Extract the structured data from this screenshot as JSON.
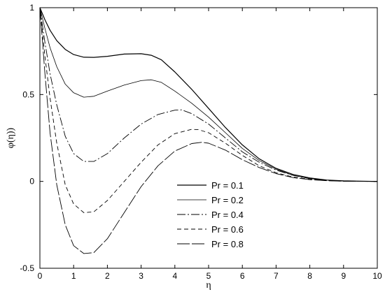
{
  "chart_data": {
    "type": "line",
    "title": "",
    "xlabel": "η",
    "ylabel": "φ(η))",
    "xlim": [
      0,
      10
    ],
    "ylim": [
      -0.5,
      1
    ],
    "xticks": [
      0,
      1,
      2,
      3,
      4,
      5,
      6,
      7,
      8,
      9,
      10
    ],
    "yticks": [
      -0.5,
      0,
      0.5,
      1
    ],
    "ytick_labels": [
      "-0.5",
      "0",
      "0.5",
      "1"
    ],
    "grid": false,
    "legend_position": "center-bottom",
    "series": [
      {
        "name": "Pr = 0.1",
        "dash": "solid",
        "points": [
          [
            0,
            1.0
          ],
          [
            0.15,
            0.93
          ],
          [
            0.3,
            0.87
          ],
          [
            0.5,
            0.81
          ],
          [
            0.75,
            0.76
          ],
          [
            1.0,
            0.73
          ],
          [
            1.3,
            0.715
          ],
          [
            1.6,
            0.714
          ],
          [
            2.0,
            0.72
          ],
          [
            2.5,
            0.733
          ],
          [
            3.0,
            0.735
          ],
          [
            3.3,
            0.726
          ],
          [
            3.6,
            0.7
          ],
          [
            4.0,
            0.63
          ],
          [
            4.5,
            0.53
          ],
          [
            5.0,
            0.42
          ],
          [
            5.5,
            0.31
          ],
          [
            6.0,
            0.21
          ],
          [
            6.5,
            0.13
          ],
          [
            7.0,
            0.075
          ],
          [
            7.5,
            0.04
          ],
          [
            8.0,
            0.02
          ],
          [
            8.5,
            0.008
          ],
          [
            9.0,
            0.003
          ],
          [
            10.0,
            0.0
          ]
        ]
      },
      {
        "name": "Pr = 0.2",
        "dash": "solid-thin",
        "points": [
          [
            0,
            1.0
          ],
          [
            0.15,
            0.88
          ],
          [
            0.3,
            0.77
          ],
          [
            0.5,
            0.66
          ],
          [
            0.75,
            0.56
          ],
          [
            1.0,
            0.51
          ],
          [
            1.3,
            0.485
          ],
          [
            1.6,
            0.49
          ],
          [
            2.0,
            0.52
          ],
          [
            2.5,
            0.555
          ],
          [
            3.0,
            0.58
          ],
          [
            3.3,
            0.585
          ],
          [
            3.6,
            0.57
          ],
          [
            4.0,
            0.52
          ],
          [
            4.5,
            0.45
          ],
          [
            5.0,
            0.37
          ],
          [
            5.5,
            0.28
          ],
          [
            6.0,
            0.19
          ],
          [
            6.5,
            0.12
          ],
          [
            7.0,
            0.07
          ],
          [
            7.5,
            0.035
          ],
          [
            8.0,
            0.016
          ],
          [
            8.5,
            0.007
          ],
          [
            9.0,
            0.002
          ],
          [
            10.0,
            0.0
          ]
        ]
      },
      {
        "name": "Pr = 0.4",
        "dash": "dashdot",
        "points": [
          [
            0,
            1.0
          ],
          [
            0.15,
            0.8
          ],
          [
            0.3,
            0.62
          ],
          [
            0.5,
            0.44
          ],
          [
            0.75,
            0.26
          ],
          [
            1.0,
            0.16
          ],
          [
            1.3,
            0.115
          ],
          [
            1.6,
            0.115
          ],
          [
            2.0,
            0.16
          ],
          [
            2.5,
            0.25
          ],
          [
            3.0,
            0.33
          ],
          [
            3.5,
            0.385
          ],
          [
            4.0,
            0.41
          ],
          [
            4.2,
            0.412
          ],
          [
            4.5,
            0.39
          ],
          [
            5.0,
            0.33
          ],
          [
            5.5,
            0.25
          ],
          [
            6.0,
            0.17
          ],
          [
            6.5,
            0.11
          ],
          [
            7.0,
            0.065
          ],
          [
            7.5,
            0.035
          ],
          [
            8.0,
            0.016
          ],
          [
            8.5,
            0.006
          ],
          [
            9.0,
            0.002
          ],
          [
            10.0,
            0.0
          ]
        ]
      },
      {
        "name": "Pr = 0.6",
        "dash": "dashed",
        "points": [
          [
            0,
            1.0
          ],
          [
            0.15,
            0.72
          ],
          [
            0.3,
            0.48
          ],
          [
            0.5,
            0.22
          ],
          [
            0.75,
            -0.02
          ],
          [
            1.0,
            -0.13
          ],
          [
            1.3,
            -0.18
          ],
          [
            1.6,
            -0.175
          ],
          [
            2.0,
            -0.11
          ],
          [
            2.5,
            0.0
          ],
          [
            3.0,
            0.11
          ],
          [
            3.5,
            0.21
          ],
          [
            4.0,
            0.275
          ],
          [
            4.5,
            0.3
          ],
          [
            4.7,
            0.298
          ],
          [
            5.0,
            0.28
          ],
          [
            5.5,
            0.22
          ],
          [
            6.0,
            0.15
          ],
          [
            6.5,
            0.09
          ],
          [
            7.0,
            0.05
          ],
          [
            7.5,
            0.025
          ],
          [
            8.0,
            0.012
          ],
          [
            8.5,
            0.005
          ],
          [
            9.0,
            0.001
          ],
          [
            10.0,
            0.0
          ]
        ]
      },
      {
        "name": "Pr = 0.8",
        "dash": "longdash",
        "points": [
          [
            0,
            1.0
          ],
          [
            0.15,
            0.62
          ],
          [
            0.3,
            0.28
          ],
          [
            0.5,
            -0.02
          ],
          [
            0.75,
            -0.25
          ],
          [
            1.0,
            -0.37
          ],
          [
            1.3,
            -0.415
          ],
          [
            1.6,
            -0.41
          ],
          [
            2.0,
            -0.33
          ],
          [
            2.5,
            -0.18
          ],
          [
            3.0,
            -0.03
          ],
          [
            3.5,
            0.09
          ],
          [
            4.0,
            0.175
          ],
          [
            4.5,
            0.218
          ],
          [
            4.8,
            0.225
          ],
          [
            5.0,
            0.22
          ],
          [
            5.5,
            0.18
          ],
          [
            6.0,
            0.125
          ],
          [
            6.5,
            0.08
          ],
          [
            7.0,
            0.045
          ],
          [
            7.5,
            0.022
          ],
          [
            8.0,
            0.01
          ],
          [
            8.5,
            0.004
          ],
          [
            9.0,
            0.001
          ],
          [
            10.0,
            0.0
          ]
        ]
      }
    ]
  }
}
